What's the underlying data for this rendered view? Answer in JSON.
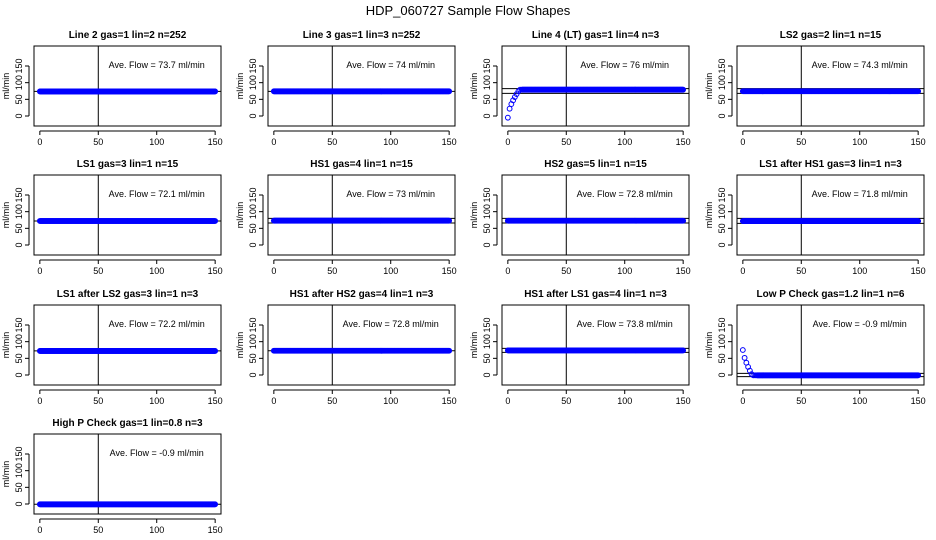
{
  "title": "HDP_060727  Sample Flow Shapes",
  "colors": {
    "points": "#0000ff",
    "lines": "#000000",
    "background": "#ffffff"
  },
  "chart_data": [
    {
      "type": "scatter",
      "title": "Line 2 gas=1 lin=2 n=252",
      "ylabel": "ml/min",
      "annotation": "Ave. Flow =  73.7  ml/min",
      "xlim": [
        0,
        150
      ],
      "ylim": [
        -30,
        210
      ],
      "xticks": [
        "0",
        "50",
        "100",
        "150"
      ],
      "yticks": [
        "0",
        "50",
        "100",
        "150"
      ],
      "vline": 50,
      "hlines": [
        73.7
      ],
      "series": [
        {
          "x": [
            0,
            150
          ],
          "y": [
            73.7,
            73.7
          ],
          "shape": "flat"
        }
      ]
    },
    {
      "type": "scatter",
      "title": "Line 3 gas=1 lin=3 n=252",
      "ylabel": "ml/min",
      "annotation": "Ave. Flow =  74  ml/min",
      "xlim": [
        0,
        150
      ],
      "ylim": [
        -30,
        210
      ],
      "xticks": [
        "0",
        "50",
        "100",
        "150"
      ],
      "yticks": [
        "0",
        "50",
        "100",
        "150"
      ],
      "vline": 50,
      "hlines": [
        74
      ],
      "series": [
        {
          "x": [
            0,
            150
          ],
          "y": [
            74,
            74
          ],
          "shape": "flat"
        }
      ]
    },
    {
      "type": "scatter",
      "title": "Line 4 (LT) gas=1 lin=4 n=3",
      "ylabel": "ml/min",
      "annotation": "Ave. Flow =  76  ml/min",
      "xlim": [
        0,
        150
      ],
      "ylim": [
        -30,
        210
      ],
      "xticks": [
        "0",
        "50",
        "100",
        "150"
      ],
      "yticks": [
        "0",
        "50",
        "100",
        "150"
      ],
      "vline": 50,
      "hlines": [
        68,
        82
      ],
      "series": [
        {
          "x": [
            0,
            150
          ],
          "y": [
            79,
            79
          ],
          "shape": "rise",
          "start": -5,
          "rise_until": 10
        }
      ]
    },
    {
      "type": "scatter",
      "title": "LS2 gas=2 lin=1 n=15",
      "ylabel": "ml/min",
      "annotation": "Ave. Flow =  74.3  ml/min",
      "xlim": [
        0,
        150
      ],
      "ylim": [
        -30,
        210
      ],
      "xticks": [
        "0",
        "50",
        "100",
        "150"
      ],
      "yticks": [
        "0",
        "50",
        "100",
        "150"
      ],
      "vline": 50,
      "hlines": [
        68,
        82
      ],
      "series": [
        {
          "x": [
            0,
            150
          ],
          "y": [
            74.3,
            74.3
          ],
          "shape": "flat"
        }
      ]
    },
    {
      "type": "scatter",
      "title": "LS1 gas=3 lin=1 n=15",
      "ylabel": "ml/min",
      "annotation": "Ave. Flow =  72.1  ml/min",
      "xlim": [
        0,
        150
      ],
      "ylim": [
        -30,
        210
      ],
      "xticks": [
        "0",
        "50",
        "100",
        "150"
      ],
      "yticks": [
        "0",
        "50",
        "100",
        "150"
      ],
      "vline": 50,
      "hlines": [
        72.1
      ],
      "series": [
        {
          "x": [
            0,
            150
          ],
          "y": [
            72.1,
            72.1
          ],
          "shape": "flat"
        }
      ]
    },
    {
      "type": "scatter",
      "title": "HS1 gas=4 lin=1 n=15",
      "ylabel": "ml/min",
      "annotation": "Ave. Flow =  73  ml/min",
      "xlim": [
        0,
        150
      ],
      "ylim": [
        -30,
        210
      ],
      "xticks": [
        "0",
        "50",
        "100",
        "150"
      ],
      "yticks": [
        "0",
        "50",
        "100",
        "150"
      ],
      "vline": 50,
      "hlines": [
        66,
        80
      ],
      "series": [
        {
          "x": [
            0,
            150
          ],
          "y": [
            73,
            73
          ],
          "shape": "flat"
        }
      ]
    },
    {
      "type": "scatter",
      "title": "HS2 gas=5 lin=1 n=15",
      "ylabel": "ml/min",
      "annotation": "Ave. Flow =  72.8  ml/min",
      "xlim": [
        0,
        150
      ],
      "ylim": [
        -30,
        210
      ],
      "xticks": [
        "0",
        "50",
        "100",
        "150"
      ],
      "yticks": [
        "0",
        "50",
        "100",
        "150"
      ],
      "vline": 50,
      "hlines": [
        66,
        80
      ],
      "series": [
        {
          "x": [
            0,
            150
          ],
          "y": [
            72.8,
            72.8
          ],
          "shape": "flat"
        }
      ]
    },
    {
      "type": "scatter",
      "title": "LS1 after HS1 gas=3 lin=1 n=3",
      "ylabel": "ml/min",
      "annotation": "Ave. Flow =  71.8  ml/min",
      "xlim": [
        0,
        150
      ],
      "ylim": [
        -30,
        210
      ],
      "xticks": [
        "0",
        "50",
        "100",
        "150"
      ],
      "yticks": [
        "0",
        "50",
        "100",
        "150"
      ],
      "vline": 50,
      "hlines": [
        65,
        80
      ],
      "series": [
        {
          "x": [
            0,
            150
          ],
          "y": [
            71.8,
            71.8
          ],
          "shape": "flat"
        }
      ]
    },
    {
      "type": "scatter",
      "title": "LS1 after LS2 gas=3 lin=1 n=3",
      "ylabel": "ml/min",
      "annotation": "Ave. Flow =  72.2  ml/min",
      "xlim": [
        0,
        150
      ],
      "ylim": [
        -30,
        210
      ],
      "xticks": [
        "0",
        "50",
        "100",
        "150"
      ],
      "yticks": [
        "0",
        "50",
        "100",
        "150"
      ],
      "vline": 50,
      "hlines": [
        72.2
      ],
      "series": [
        {
          "x": [
            0,
            150
          ],
          "y": [
            72.2,
            72.2
          ],
          "shape": "flat"
        }
      ]
    },
    {
      "type": "scatter",
      "title": "HS1 after HS2 gas=4 lin=1 n=3",
      "ylabel": "ml/min",
      "annotation": "Ave. Flow =  72.8  ml/min",
      "xlim": [
        0,
        150
      ],
      "ylim": [
        -30,
        210
      ],
      "xticks": [
        "0",
        "50",
        "100",
        "150"
      ],
      "yticks": [
        "0",
        "50",
        "100",
        "150"
      ],
      "vline": 50,
      "hlines": [
        72.8
      ],
      "series": [
        {
          "x": [
            0,
            150
          ],
          "y": [
            72.8,
            72.8
          ],
          "shape": "flat"
        }
      ]
    },
    {
      "type": "scatter",
      "title": "HS1 after LS1 gas=4 lin=1 n=3",
      "ylabel": "ml/min",
      "annotation": "Ave. Flow =  73.8  ml/min",
      "xlim": [
        0,
        150
      ],
      "ylim": [
        -30,
        210
      ],
      "xticks": [
        "0",
        "50",
        "100",
        "150"
      ],
      "yticks": [
        "0",
        "50",
        "100",
        "150"
      ],
      "vline": 50,
      "hlines": [
        68,
        80
      ],
      "series": [
        {
          "x": [
            0,
            150
          ],
          "y": [
            73.8,
            73.8
          ],
          "shape": "flat"
        }
      ]
    },
    {
      "type": "scatter",
      "title": "Low P Check gas=1.2 lin=1 n=6",
      "ylabel": "ml/min",
      "annotation": "Ave. Flow =  -0.9  ml/min",
      "xlim": [
        0,
        150
      ],
      "ylim": [
        -30,
        210
      ],
      "xticks": [
        "0",
        "50",
        "100",
        "150"
      ],
      "yticks": [
        "0",
        "50",
        "100",
        "150"
      ],
      "vline": 50,
      "hlines": [
        -5,
        5
      ],
      "series": [
        {
          "x": [
            0,
            150
          ],
          "y": [
            -0.9,
            -0.9
          ],
          "shape": "decay",
          "start": 75,
          "decay_until": 8
        }
      ]
    },
    {
      "type": "scatter",
      "title": "High P Check gas=1 lin=0.8 n=3",
      "ylabel": "ml/min",
      "annotation": "Ave. Flow =  -0.9  ml/min",
      "xlim": [
        0,
        150
      ],
      "ylim": [
        -30,
        210
      ],
      "xticks": [
        "0",
        "50",
        "100",
        "150"
      ],
      "yticks": [
        "0",
        "50",
        "100",
        "150"
      ],
      "vline": 50,
      "hlines": [
        -0.9
      ],
      "series": [
        {
          "x": [
            0,
            150
          ],
          "y": [
            -0.9,
            -0.9
          ],
          "shape": "flat"
        }
      ]
    }
  ]
}
